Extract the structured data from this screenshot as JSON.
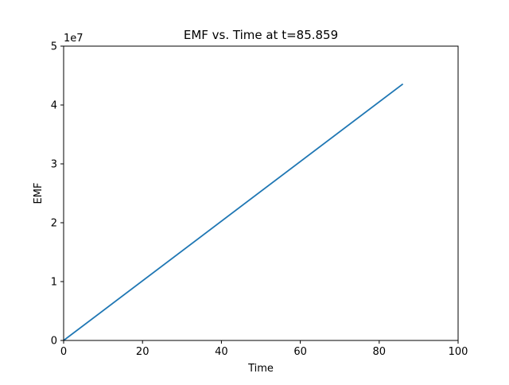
{
  "chart_data": {
    "type": "line",
    "title": "EMF vs. Time at t=85.859",
    "xlabel": "Time",
    "ylabel": "EMF",
    "y_offset_label": "1e7",
    "xlim": [
      0,
      100
    ],
    "ylim": [
      0,
      50000000
    ],
    "x_ticks": [
      0,
      20,
      40,
      60,
      80,
      100
    ],
    "x_tick_labels": [
      "0",
      "20",
      "40",
      "60",
      "80",
      "100"
    ],
    "y_ticks": [
      0,
      10000000,
      20000000,
      30000000,
      40000000,
      50000000
    ],
    "y_tick_labels": [
      "0",
      "1",
      "2",
      "3",
      "4",
      "5"
    ],
    "grid": false,
    "series": [
      {
        "color": "#1f77b4",
        "x": [
          0,
          85.859
        ],
        "y": [
          0,
          43500000
        ]
      }
    ]
  }
}
